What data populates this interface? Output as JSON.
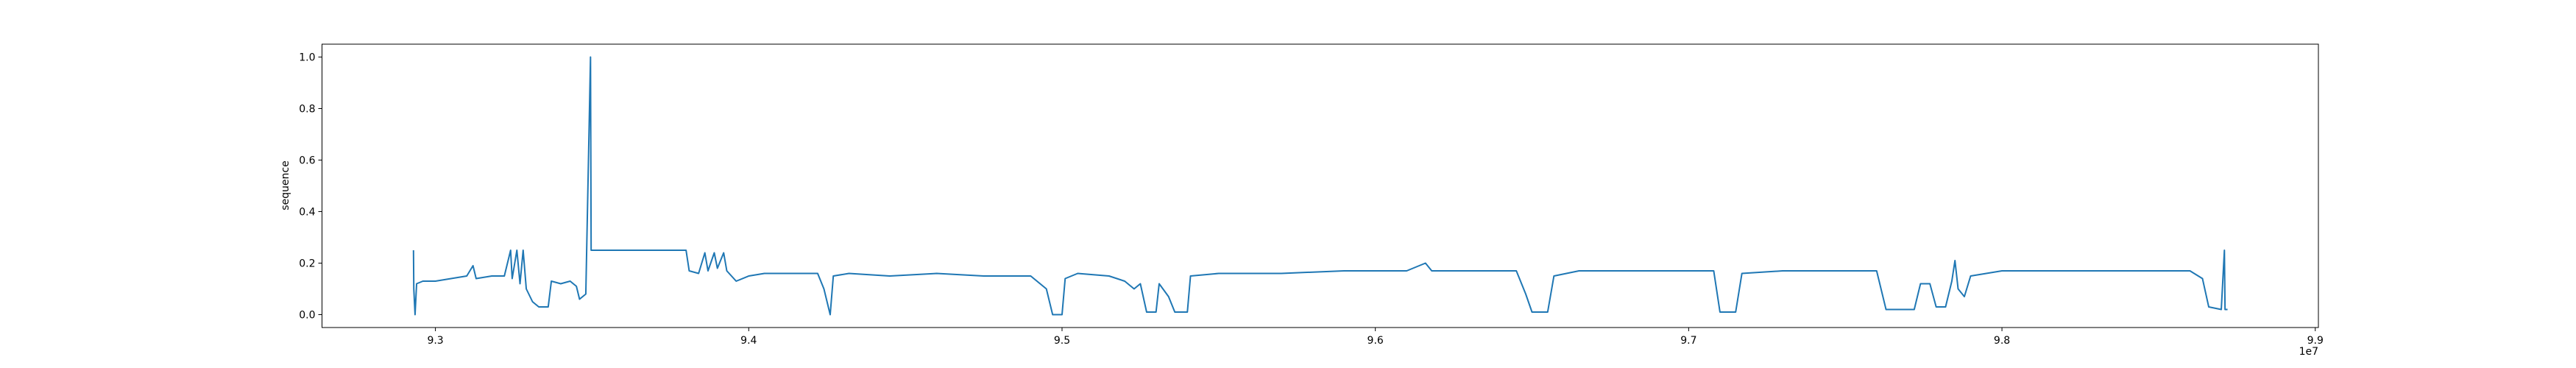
{
  "chart_data": {
    "type": "line",
    "y_label": "sequence",
    "x_offset_label": "1e7",
    "x": [
      92930000,
      92931000,
      92935000,
      92940000,
      92960000,
      93000000,
      93050000,
      93100000,
      93120000,
      93130000,
      93180000,
      93220000,
      93240000,
      93245000,
      93260000,
      93270000,
      93280000,
      93290000,
      93310000,
      93330000,
      93360000,
      93370000,
      93400000,
      93430000,
      93450000,
      93460000,
      93480000,
      93495000,
      93497000,
      93800000,
      93810000,
      93840000,
      93860000,
      93870000,
      93890000,
      93900000,
      93920000,
      93930000,
      93960000,
      94000000,
      94050000,
      94150000,
      94220000,
      94240000,
      94260000,
      94270000,
      94320000,
      94450000,
      94600000,
      94750000,
      94900000,
      94950000,
      94970000,
      95000000,
      95010000,
      95050000,
      95150000,
      95200000,
      95230000,
      95250000,
      95270000,
      95300000,
      95310000,
      95340000,
      95360000,
      95400000,
      95410000,
      95500000,
      95700000,
      95900000,
      96100000,
      96140000,
      96160000,
      96180000,
      96300000,
      96450000,
      96480000,
      96500000,
      96550000,
      96570000,
      96650000,
      96900000,
      97080000,
      97100000,
      97150000,
      97170000,
      97300000,
      97500000,
      97600000,
      97630000,
      97720000,
      97740000,
      97770000,
      97790000,
      97820000,
      97840000,
      97850000,
      97860000,
      97880000,
      97900000,
      98000000,
      98300000,
      98600000,
      98640000,
      98660000,
      98700000,
      98710000,
      98712000,
      98720000
    ],
    "values": [
      0.25,
      0.1,
      0.0,
      0.12,
      0.13,
      0.13,
      0.14,
      0.15,
      0.19,
      0.14,
      0.15,
      0.15,
      0.25,
      0.14,
      0.25,
      0.12,
      0.25,
      0.1,
      0.05,
      0.03,
      0.03,
      0.13,
      0.12,
      0.13,
      0.11,
      0.06,
      0.08,
      1.0,
      0.25,
      0.25,
      0.17,
      0.16,
      0.24,
      0.17,
      0.24,
      0.18,
      0.24,
      0.17,
      0.13,
      0.15,
      0.16,
      0.16,
      0.16,
      0.1,
      0.0,
      0.15,
      0.16,
      0.15,
      0.16,
      0.15,
      0.15,
      0.1,
      0.0,
      0.0,
      0.14,
      0.16,
      0.15,
      0.13,
      0.1,
      0.12,
      0.01,
      0.01,
      0.12,
      0.07,
      0.01,
      0.01,
      0.15,
      0.16,
      0.16,
      0.17,
      0.17,
      0.19,
      0.2,
      0.17,
      0.17,
      0.17,
      0.08,
      0.01,
      0.01,
      0.15,
      0.17,
      0.17,
      0.17,
      0.01,
      0.01,
      0.16,
      0.17,
      0.17,
      0.17,
      0.02,
      0.02,
      0.12,
      0.12,
      0.03,
      0.03,
      0.13,
      0.21,
      0.1,
      0.07,
      0.15,
      0.17,
      0.17,
      0.17,
      0.14,
      0.03,
      0.02,
      0.25,
      0.02,
      0.02
    ],
    "color": "#1f77b4",
    "xlim": [
      92638000,
      99010000
    ],
    "xticks": [
      {
        "value": 93000000,
        "label": "9.3"
      },
      {
        "value": 94000000,
        "label": "9.4"
      },
      {
        "value": 95000000,
        "label": "9.5"
      },
      {
        "value": 96000000,
        "label": "9.6"
      },
      {
        "value": 97000000,
        "label": "9.7"
      },
      {
        "value": 98000000,
        "label": "9.8"
      },
      {
        "value": 99000000,
        "label": "9.9"
      }
    ],
    "ylim": [
      -0.05,
      1.05
    ],
    "yticks": [
      {
        "value": 0,
        "label": "0.0"
      },
      0.2,
      0.4,
      0.6,
      0.8,
      {
        "value": 1,
        "label": "1.0"
      }
    ],
    "grid": false
  }
}
